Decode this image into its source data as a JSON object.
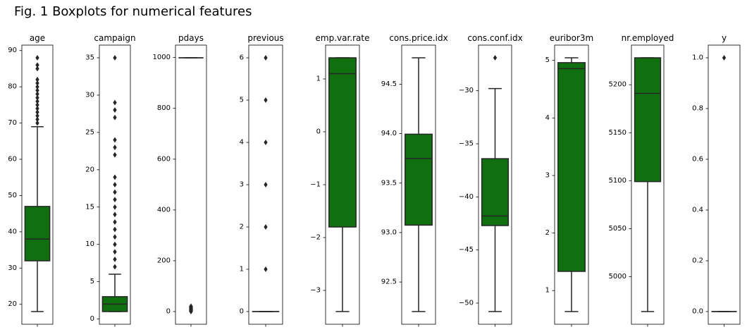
{
  "title": "Fig. 1 Boxplots for numerical features",
  "style": {
    "box_color": "#107010",
    "line_color": "#262626",
    "frame_color": "#000000"
  },
  "chart_data": [
    {
      "type": "box",
      "title": "age",
      "ylim": [
        14.5,
        91.5
      ],
      "ytick_labels": [
        "20",
        "30",
        "40",
        "50",
        "60",
        "70",
        "80",
        "90"
      ],
      "whisker_low": 18,
      "q1": 32,
      "median": 38,
      "q3": 47,
      "whisker_high": 69,
      "outliers": [
        70,
        71,
        72,
        73,
        74,
        75,
        76,
        77,
        78,
        79,
        80,
        81,
        82,
        85,
        86,
        88
      ],
      "grid": false
    },
    {
      "type": "box",
      "title": "campaign",
      "ylim": [
        -0.7,
        36.7
      ],
      "ytick_labels": [
        "0",
        "5",
        "10",
        "15",
        "20",
        "25",
        "30",
        "35"
      ],
      "whisker_low": 1,
      "q1": 1,
      "median": 2,
      "q3": 3,
      "whisker_high": 6,
      "outliers": [
        7,
        8,
        9,
        10,
        11,
        12,
        13,
        14,
        15,
        16,
        17,
        18,
        19,
        22,
        23,
        24,
        27,
        28,
        29,
        35
      ],
      "grid": false
    },
    {
      "type": "box",
      "title": "pdays",
      "ylim": [
        -49.95,
        1048.95
      ],
      "ytick_labels": [
        "0",
        "200",
        "400",
        "600",
        "800",
        "1000"
      ],
      "whisker_low": 999,
      "q1": 999,
      "median": 999,
      "q3": 999,
      "whisker_high": 999,
      "outliers": [
        0,
        1,
        2,
        3,
        4,
        5,
        6,
        7,
        8,
        9,
        10,
        11,
        12,
        13,
        14,
        15,
        16,
        17,
        18,
        19,
        21
      ],
      "grid": false
    },
    {
      "type": "box",
      "title": "previous",
      "ylim": [
        -0.3,
        6.3
      ],
      "ytick_labels": [
        "0",
        "1",
        "2",
        "3",
        "4",
        "5",
        "6"
      ],
      "whisker_low": 0,
      "q1": 0,
      "median": 0,
      "q3": 0,
      "whisker_high": 0,
      "outliers": [
        1,
        2,
        3,
        4,
        5,
        6
      ],
      "grid": false
    },
    {
      "type": "box",
      "title": "emp.var.rate",
      "ylim": [
        -3.64,
        1.64
      ],
      "ytick_labels": [
        "−3",
        "−2",
        "−1",
        "0",
        "1"
      ],
      "whisker_low": -3.4,
      "q1": -1.8,
      "median": 1.1,
      "q3": 1.4,
      "whisker_high": 1.4,
      "outliers": [],
      "grid": false
    },
    {
      "type": "box",
      "title": "cons.price.idx",
      "ylim": [
        92.073,
        94.895
      ],
      "ytick_labels": [
        "92.5",
        "93.0",
        "93.5",
        "94.0",
        "94.5"
      ],
      "whisker_low": 92.201,
      "q1": 93.075,
      "median": 93.749,
      "q3": 93.994,
      "whisker_high": 94.767,
      "outliers": [],
      "grid": false
    },
    {
      "type": "box",
      "title": "cons.conf.idx",
      "ylim": [
        -51.995,
        -25.705
      ],
      "ytick_labels": [
        "−50",
        "−45",
        "−40",
        "−35",
        "−30"
      ],
      "whisker_low": -50.8,
      "q1": -42.7,
      "median": -41.8,
      "q3": -36.4,
      "whisker_high": -29.8,
      "outliers": [
        -26.9
      ],
      "grid": false
    },
    {
      "type": "box",
      "title": "euribor3m",
      "ylim": [
        0.415,
        5.266
      ],
      "ytick_labels": [
        "1",
        "2",
        "3",
        "4",
        "5"
      ],
      "whisker_low": 0.635,
      "q1": 1.334,
      "median": 4.857,
      "q3": 4.961,
      "whisker_high": 5.045,
      "outliers": [],
      "grid": false
    },
    {
      "type": "box",
      "title": "nr.employed",
      "ylim": [
        4950.4,
        5241.3
      ],
      "ytick_labels": [
        "5000",
        "5050",
        "5100",
        "5150",
        "5200"
      ],
      "whisker_low": 4963.6,
      "q1": 5099.1,
      "median": 5191,
      "q3": 5228.1,
      "whisker_high": 5228.1,
      "outliers": [],
      "grid": false
    },
    {
      "type": "box",
      "title": "y",
      "ylim": [
        -0.05,
        1.05
      ],
      "ytick_labels": [
        "0.0",
        "0.2",
        "0.4",
        "0.6",
        "0.8",
        "1.0"
      ],
      "whisker_low": 0,
      "q1": 0,
      "median": 0,
      "q3": 0,
      "whisker_high": 0,
      "outliers": [
        1
      ],
      "grid": false
    }
  ]
}
